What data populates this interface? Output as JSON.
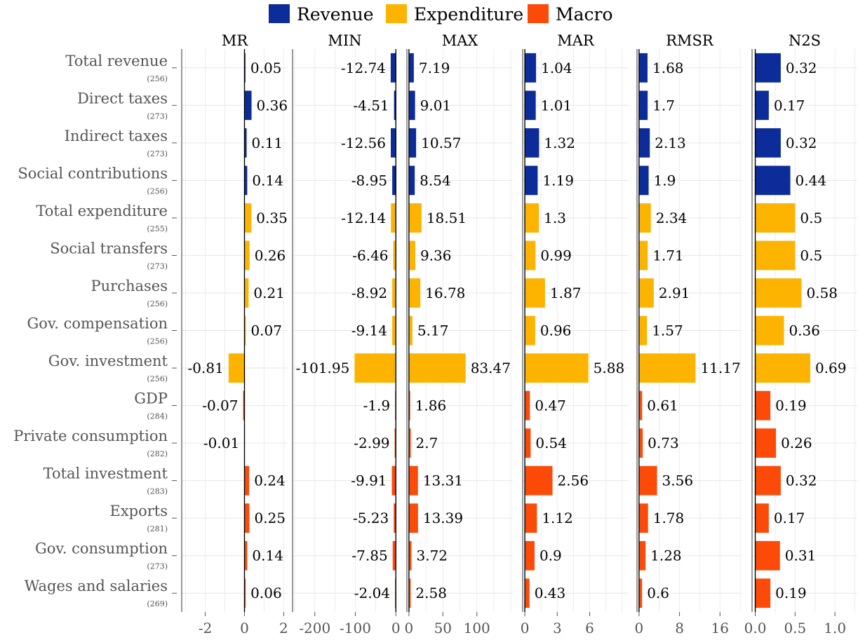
{
  "chart_data": {
    "type": "bar",
    "orientation": "horizontal",
    "legend": {
      "position": "top",
      "entries": [
        {
          "name": "Revenue",
          "color": "#0c2c9a"
        },
        {
          "name": "Expenditure",
          "color": "#fdb400"
        },
        {
          "name": "Macro",
          "color": "#fc4a08"
        }
      ]
    },
    "grid": true,
    "rows": [
      {
        "label": "Total revenue",
        "n": "(256)",
        "group": "Revenue"
      },
      {
        "label": "Direct taxes",
        "n": "(273)",
        "group": "Revenue"
      },
      {
        "label": "Indirect taxes",
        "n": "(273)",
        "group": "Revenue"
      },
      {
        "label": "Social contributions",
        "n": "(256)",
        "group": "Revenue"
      },
      {
        "label": "Total expenditure",
        "n": "(255)",
        "group": "Expenditure"
      },
      {
        "label": "Social transfers",
        "n": "(273)",
        "group": "Expenditure"
      },
      {
        "label": "Purchases",
        "n": "(256)",
        "group": "Expenditure"
      },
      {
        "label": "Gov. compensation",
        "n": "(256)",
        "group": "Expenditure"
      },
      {
        "label": "Gov. investment",
        "n": "(256)",
        "group": "Expenditure"
      },
      {
        "label": "GDP",
        "n": "(284)",
        "group": "Macro"
      },
      {
        "label": "Private consumption",
        "n": "(282)",
        "group": "Macro"
      },
      {
        "label": "Total investment",
        "n": "(283)",
        "group": "Macro"
      },
      {
        "label": "Exports",
        "n": "(281)",
        "group": "Macro"
      },
      {
        "label": "Gov. consumption",
        "n": "(273)",
        "group": "Macro"
      },
      {
        "label": "Wages and salaries",
        "n": "(269)",
        "group": "Macro"
      }
    ],
    "panels": [
      {
        "title": "MR",
        "xlim": [
          -3.2,
          2.2
        ],
        "ticks": [
          -2,
          0,
          2
        ],
        "tick_labels": [
          "-2",
          "0",
          "2"
        ],
        "values": [
          0.05,
          0.36,
          0.11,
          0.14,
          0.35,
          0.26,
          0.21,
          0.07,
          -0.81,
          -0.07,
          -0.01,
          0.24,
          0.25,
          0.14,
          0.06
        ],
        "labels": [
          "0.05",
          "0.36",
          "0.11",
          "0.14",
          "0.35",
          "0.26",
          "0.21",
          "0.07",
          "-0.81",
          "-0.07",
          "-0.01",
          "0.24",
          "0.25",
          "0.14",
          "0.06"
        ]
      },
      {
        "title": "MIN",
        "xlim": [
          -255,
          3
        ],
        "ticks": [
          -200,
          -100,
          0
        ],
        "tick_labels": [
          "-200",
          "-100",
          "0"
        ],
        "values": [
          -12.74,
          -4.51,
          -12.56,
          -8.95,
          -12.14,
          -6.46,
          -8.92,
          -9.14,
          -101.95,
          -1.9,
          -2.99,
          -9.91,
          -5.23,
          -7.85,
          -2.04
        ],
        "labels": [
          "-12.74",
          "-4.51",
          "-12.56",
          "-8.95",
          "-12.14",
          "-6.46",
          "-8.92",
          "-9.14",
          "-101.95",
          "-1.9",
          "-2.99",
          "-9.91",
          "-5.23",
          "-7.85",
          "-2.04"
        ]
      },
      {
        "title": "MAX",
        "xlim": [
          -3,
          153
        ],
        "ticks": [
          0,
          50,
          100
        ],
        "tick_labels": [
          "0",
          "50",
          "100"
        ],
        "values": [
          7.19,
          9.01,
          10.57,
          8.54,
          18.51,
          9.36,
          16.78,
          5.17,
          83.47,
          1.86,
          2.7,
          13.31,
          13.39,
          3.72,
          2.58
        ],
        "labels": [
          "7.19",
          "9.01",
          "10.57",
          "8.54",
          "18.51",
          "9.36",
          "16.78",
          "5.17",
          "83.47",
          "1.86",
          "2.7",
          "13.31",
          "13.39",
          "3.72",
          "2.58"
        ]
      },
      {
        "title": "MAR",
        "xlim": [
          -0.2,
          9.6
        ],
        "ticks": [
          0,
          3,
          6
        ],
        "tick_labels": [
          "0",
          "3",
          "6"
        ],
        "values": [
          1.04,
          1.01,
          1.32,
          1.19,
          1.3,
          0.99,
          1.87,
          0.96,
          5.88,
          0.47,
          0.54,
          2.56,
          1.12,
          0.9,
          0.43
        ],
        "labels": [
          "1.04",
          "1.01",
          "1.32",
          "1.19",
          "1.3",
          "0.99",
          "1.87",
          "0.96",
          "5.88",
          "0.47",
          "0.54",
          "2.56",
          "1.12",
          "0.9",
          "0.43"
        ]
      },
      {
        "title": "RMSR",
        "xlim": [
          -0.4,
          20.4
        ],
        "ticks": [
          0,
          8,
          16
        ],
        "tick_labels": [
          "0",
          "8",
          "16"
        ],
        "values": [
          1.68,
          1.7,
          2.13,
          1.9,
          2.34,
          1.71,
          2.91,
          1.57,
          11.17,
          0.61,
          0.73,
          3.56,
          1.78,
          1.28,
          0.6
        ],
        "labels": [
          "1.68",
          "1.7",
          "2.13",
          "1.9",
          "2.34",
          "1.71",
          "2.91",
          "1.57",
          "11.17",
          "0.61",
          "0.73",
          "3.56",
          "1.78",
          "1.28",
          "0.6"
        ]
      },
      {
        "title": "N2S",
        "xlim": [
          -0.04,
          1.28
        ],
        "ticks": [
          0,
          0.5,
          1.0
        ],
        "tick_labels": [
          "0.0",
          "0.5",
          "1.0"
        ],
        "values": [
          0.32,
          0.17,
          0.32,
          0.44,
          0.5,
          0.5,
          0.58,
          0.36,
          0.69,
          0.19,
          0.26,
          0.32,
          0.17,
          0.31,
          0.19
        ],
        "labels": [
          "0.32",
          "0.17",
          "0.32",
          "0.44",
          "0.5",
          "0.5",
          "0.58",
          "0.36",
          "0.69",
          "0.19",
          "0.26",
          "0.32",
          "0.17",
          "0.31",
          "0.19"
        ]
      }
    ]
  }
}
